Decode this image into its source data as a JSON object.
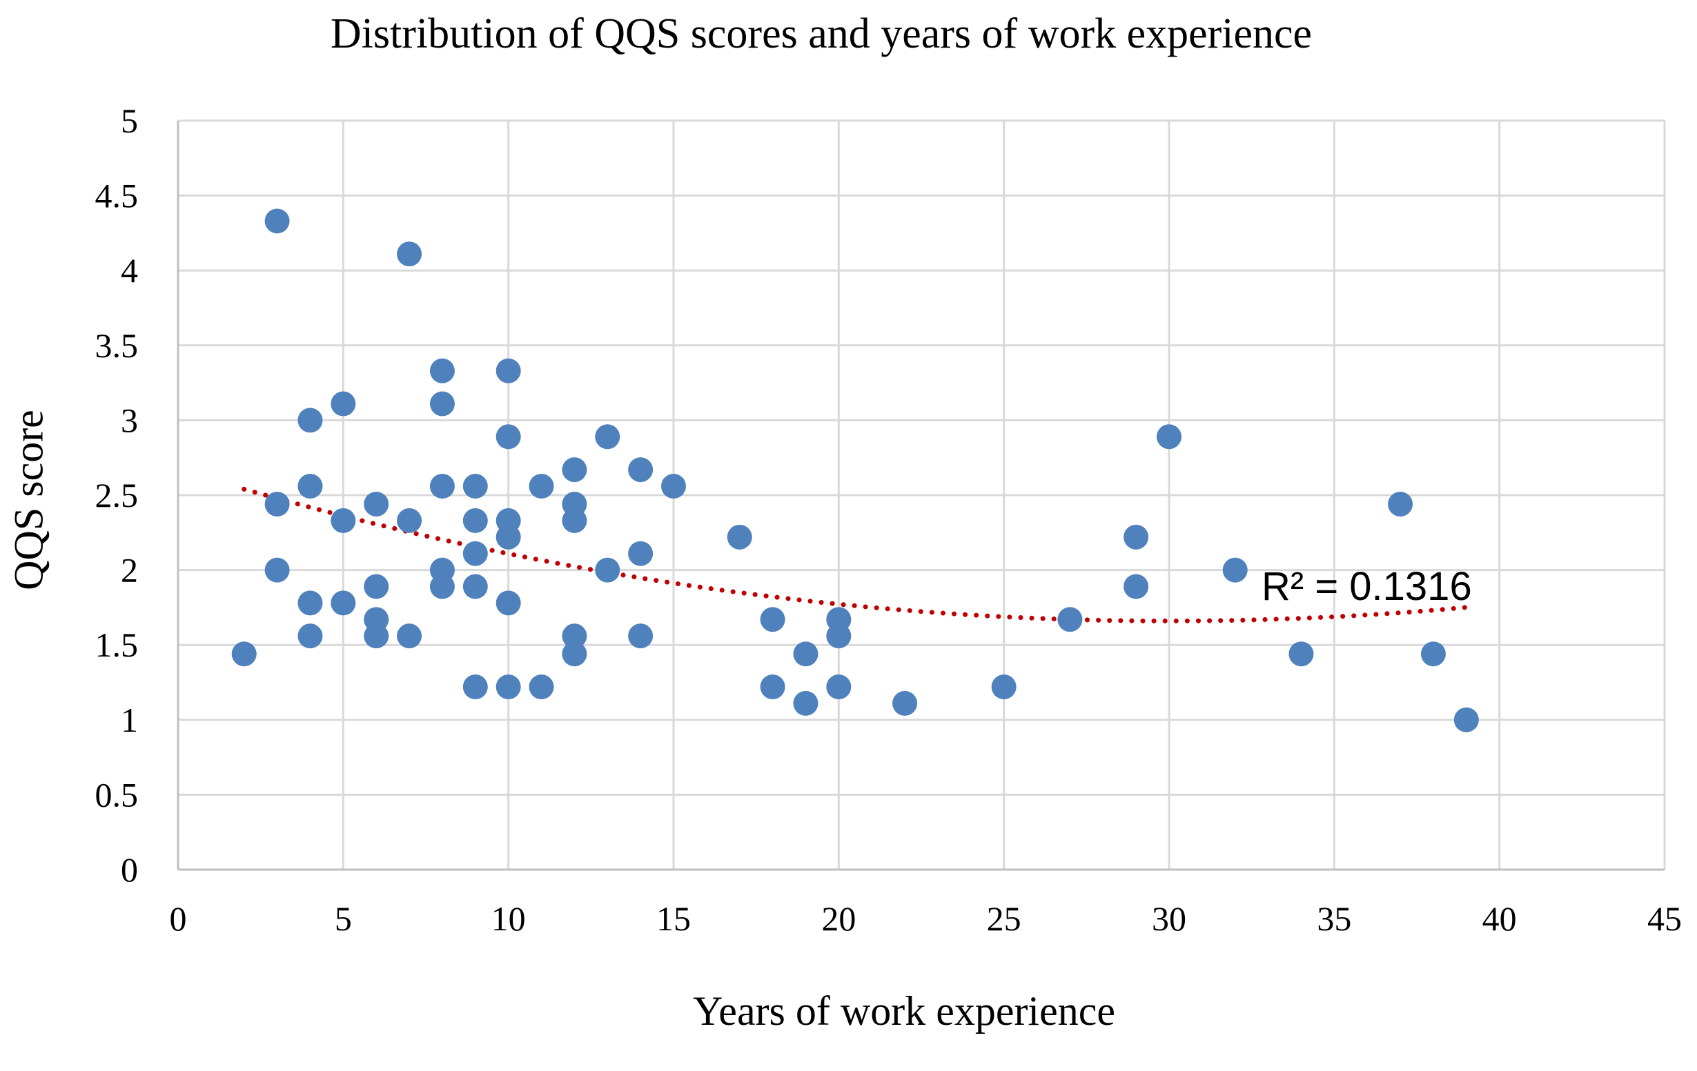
{
  "chart_data": {
    "type": "scatter",
    "title": "Distribution of QQS scores and years of work experience",
    "xlabel": "Years of work experience",
    "ylabel": "QQS score",
    "xlim": [
      0,
      45
    ],
    "ylim": [
      0,
      5
    ],
    "x_ticks": [
      "0",
      "5",
      "10",
      "15",
      "20",
      "25",
      "30",
      "35",
      "40",
      "45"
    ],
    "y_ticks": [
      "0",
      "0.5",
      "1",
      "1.5",
      "2",
      "2.5",
      "3",
      "3.5",
      "4",
      "4.5",
      "5"
    ],
    "grid": true,
    "legend": "none",
    "colors": {
      "points": "#4f81bd",
      "trendline": "#c00000",
      "grid": "#d9d9d9",
      "axis": "#bfbfbf"
    },
    "series": [
      {
        "name": "QQS score",
        "points": [
          [
            2,
            1.44
          ],
          [
            3,
            4.33
          ],
          [
            3,
            2.44
          ],
          [
            3,
            2.0
          ],
          [
            4,
            3.0
          ],
          [
            4,
            2.56
          ],
          [
            4,
            1.78
          ],
          [
            4,
            1.56
          ],
          [
            5,
            3.11
          ],
          [
            5,
            2.33
          ],
          [
            5,
            1.78
          ],
          [
            6,
            2.44
          ],
          [
            6,
            1.89
          ],
          [
            6,
            1.67
          ],
          [
            6,
            1.56
          ],
          [
            7,
            4.11
          ],
          [
            7,
            2.33
          ],
          [
            7,
            1.56
          ],
          [
            8,
            3.33
          ],
          [
            8,
            3.11
          ],
          [
            8,
            2.56
          ],
          [
            8,
            2.0
          ],
          [
            8,
            1.89
          ],
          [
            9,
            2.56
          ],
          [
            9,
            2.33
          ],
          [
            9,
            2.11
          ],
          [
            9,
            1.89
          ],
          [
            9,
            1.22
          ],
          [
            10,
            3.33
          ],
          [
            10,
            2.89
          ],
          [
            10,
            2.33
          ],
          [
            10,
            2.22
          ],
          [
            10,
            1.78
          ],
          [
            10,
            1.22
          ],
          [
            11,
            2.56
          ],
          [
            11,
            1.22
          ],
          [
            12,
            2.67
          ],
          [
            12,
            2.44
          ],
          [
            12,
            2.33
          ],
          [
            12,
            1.56
          ],
          [
            12,
            1.44
          ],
          [
            13,
            2.89
          ],
          [
            13,
            2.0
          ],
          [
            14,
            2.67
          ],
          [
            14,
            2.11
          ],
          [
            14,
            1.56
          ],
          [
            15,
            2.56
          ],
          [
            17,
            2.22
          ],
          [
            18,
            1.67
          ],
          [
            18,
            1.22
          ],
          [
            19,
            1.44
          ],
          [
            19,
            1.11
          ],
          [
            20,
            1.67
          ],
          [
            20,
            1.56
          ],
          [
            20,
            1.22
          ],
          [
            22,
            1.11
          ],
          [
            25,
            1.22
          ],
          [
            27,
            1.67
          ],
          [
            29,
            2.22
          ],
          [
            29,
            1.89
          ],
          [
            30,
            2.89
          ],
          [
            32,
            2.0
          ],
          [
            34,
            1.44
          ],
          [
            37,
            2.44
          ],
          [
            38,
            1.44
          ],
          [
            39,
            1.0
          ]
        ]
      }
    ],
    "trendline": {
      "type": "polynomial",
      "order": 2,
      "x_range": [
        2,
        39
      ],
      "y_at_start": 2.54,
      "y_at_min": 1.66,
      "x_at_min": 30,
      "y_at_end": 1.75,
      "r_squared_label": "R² = 0.1316"
    }
  }
}
